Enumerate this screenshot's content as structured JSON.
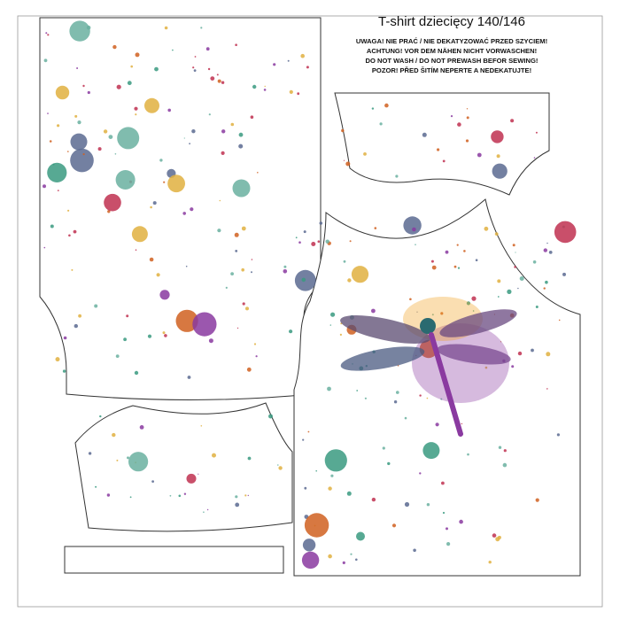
{
  "title": "T-shirt  dziecięcy 140/146",
  "warning": [
    "UWAGA! NIE PRAĆ / NIE DEKATYZOWAĆ PRZED SZYCIEM!",
    "ACHTUNG! VOR DEM NÄHEN NICHT VORWASCHEN!",
    "DO NOT WASH / DO NOT PREWASH BEFOR SEWING!",
    "POZOR! PŘED ŠITÍM NEPERTE A NEDEKATUJTE!"
  ]
}
